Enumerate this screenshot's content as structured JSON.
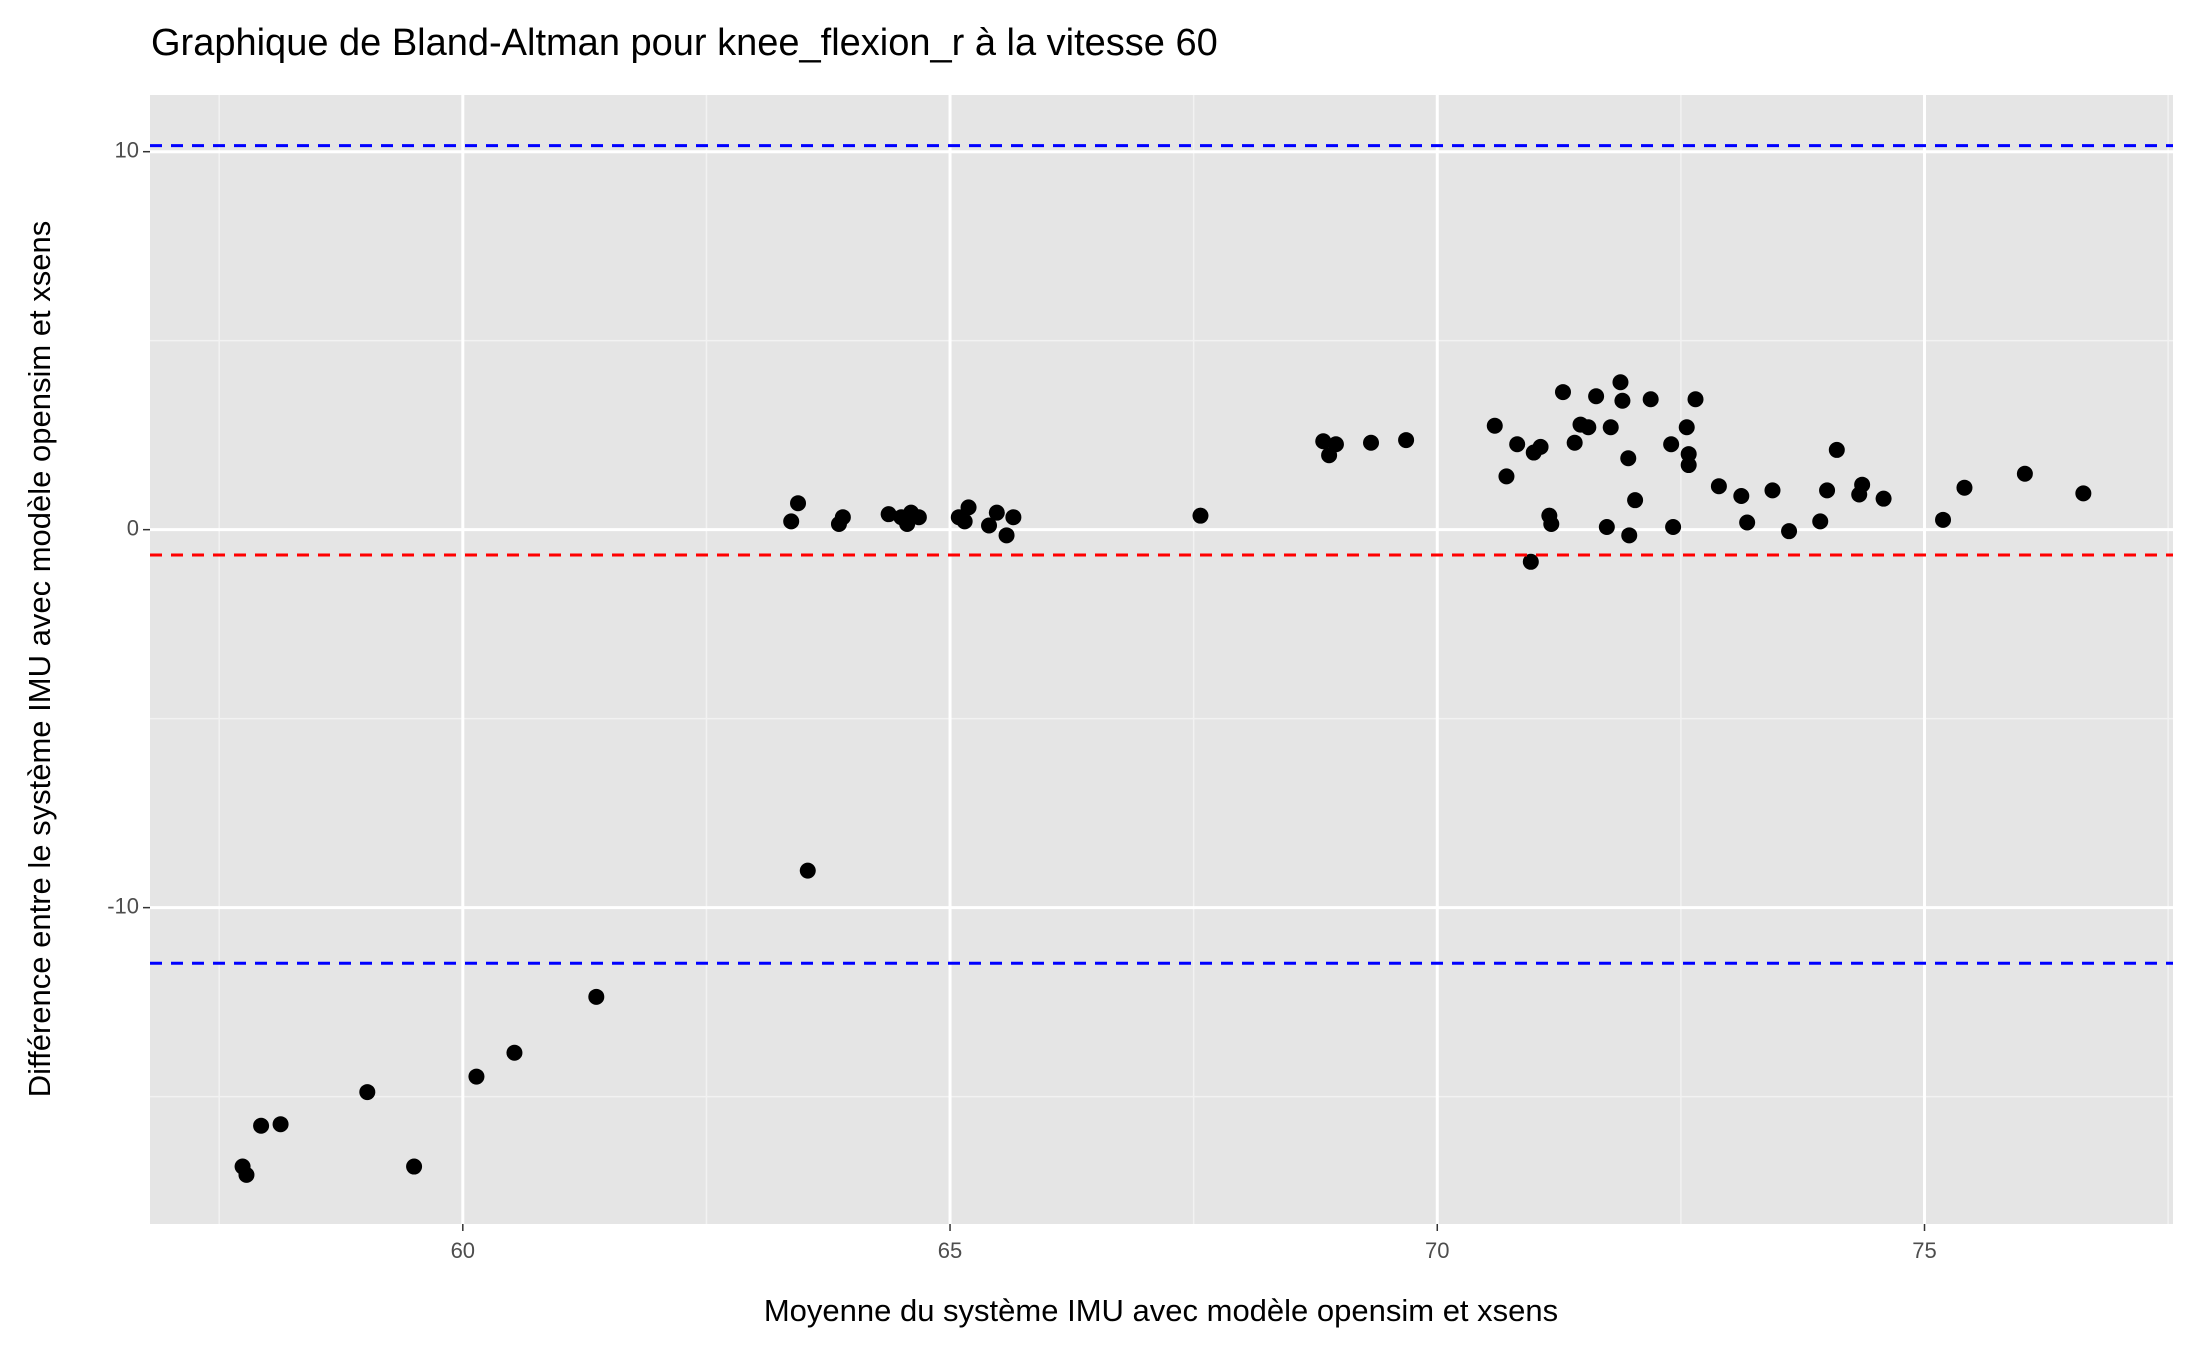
{
  "chart_data": {
    "type": "scatter",
    "title": "Graphique de Bland-Altman pour knee_flexion_r à la vitesse 60",
    "x_label": "Moyenne du système IMU avec modèle opensim et xsens",
    "y_label": "Différence entre le système IMU avec modèle opensim et xsens",
    "xlim": [
      56.79,
      77.55
    ],
    "ylim": [
      -18.37,
      11.5
    ],
    "xticks": [
      60,
      65,
      70,
      75
    ],
    "yticks": [
      -10,
      0,
      10
    ],
    "grid": true,
    "color": "#000000",
    "reference_lines": [
      {
        "value": 10.16,
        "color": "#0000ff"
      },
      {
        "value": -0.67,
        "color": "#ff0000"
      },
      {
        "value": -11.47,
        "color": "#0000ff"
      }
    ],
    "x": [
      57.74,
      57.78,
      57.93,
      58.13,
      59.02,
      59.5,
      60.14,
      60.53,
      61.37,
      63.54,
      63.37,
      63.44,
      63.86,
      63.9,
      64.37,
      64.5,
      64.56,
      64.6,
      64.68,
      65.09,
      65.15,
      65.19,
      65.4,
      65.48,
      65.58,
      65.65,
      67.57,
      68.83,
      68.89,
      68.96,
      69.32,
      69.68,
      70.59,
      70.71,
      70.82,
      70.96,
      70.99,
      71.06,
      71.15,
      71.17,
      71.29,
      71.41,
      71.47,
      71.55,
      71.63,
      71.74,
      71.78,
      71.88,
      71.9,
      71.96,
      71.97,
      72.03,
      72.19,
      72.4,
      72.42,
      72.56,
      72.58,
      72.58,
      72.65,
      72.89,
      73.12,
      73.18,
      73.44,
      73.61,
      73.93,
      74.0,
      74.1,
      74.33,
      74.36,
      74.58,
      75.19,
      75.41,
      76.03,
      76.63
    ],
    "values": [
      -16.85,
      -17.07,
      -15.77,
      -15.73,
      -14.88,
      -16.85,
      -14.47,
      -13.84,
      -12.36,
      -9.02,
      0.22,
      0.7,
      0.15,
      0.33,
      0.41,
      0.33,
      0.15,
      0.45,
      0.33,
      0.33,
      0.22,
      0.59,
      0.11,
      0.45,
      -0.15,
      0.33,
      0.37,
      2.34,
      1.97,
      2.26,
      2.3,
      2.37,
      2.75,
      1.41,
      2.26,
      -0.85,
      2.04,
      2.19,
      0.37,
      0.15,
      3.64,
      2.3,
      2.78,
      2.71,
      3.53,
      0.07,
      2.71,
      3.9,
      3.41,
      1.89,
      -0.15,
      0.78,
      3.45,
      2.26,
      0.07,
      2.71,
      2.0,
      1.71,
      3.45,
      1.15,
      0.89,
      0.19,
      1.04,
      -0.04,
      0.22,
      1.04,
      2.11,
      0.93,
      1.19,
      0.82,
      0.26,
      1.11,
      1.48,
      0.96
    ]
  }
}
